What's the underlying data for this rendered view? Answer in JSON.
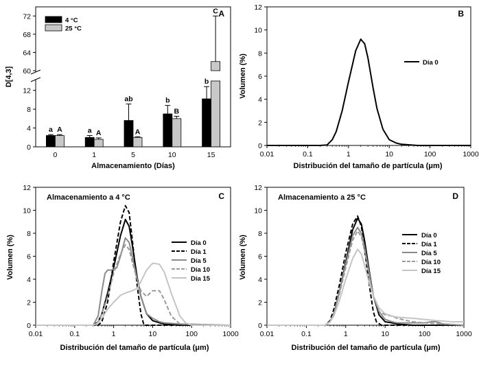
{
  "colors": {
    "axis": "#000000",
    "bar_4c": "#000000",
    "bar_25c": "#c8c8c8"
  },
  "chart_data": [
    {
      "panel": "A",
      "type": "bar",
      "title": "",
      "xlabel": "Almacenamiento (Días)",
      "ylabel": "D[4,3]",
      "categories": [
        "0",
        "1",
        "5",
        "10",
        "15"
      ],
      "ylim_lower": [
        0,
        14
      ],
      "ylim_upper": [
        60,
        74
      ],
      "yticks_lower": [
        "0",
        "4",
        "8",
        "12"
      ],
      "yticks_upper": [
        "60",
        "64",
        "68",
        "72"
      ],
      "axis_break": true,
      "legend_position": "top-left",
      "series": [
        {
          "name": "4 °C",
          "values": [
            2.4,
            2.0,
            5.6,
            7.0,
            10.2
          ],
          "errors": [
            0.2,
            0.4,
            3.5,
            1.8,
            2.6
          ],
          "letters": [
            "a",
            "a",
            "ab",
            "b",
            "b"
          ]
        },
        {
          "name": "25 °C",
          "values": [
            2.4,
            1.6,
            2.0,
            6.0,
            62.0
          ],
          "errors": [
            0.2,
            0.3,
            0.15,
            0.5,
            10.0
          ],
          "letters": [
            "A",
            "A",
            "A",
            "B",
            "C"
          ]
        }
      ]
    },
    {
      "panel": "B",
      "type": "line",
      "xscale": "log",
      "xlabel": "Distribución del tamaño de partícula (μm)",
      "ylabel": "Volumen (%)",
      "xticks": [
        "0.01",
        "0.1",
        "1",
        "10",
        "100",
        "1000"
      ],
      "yticks": [
        "0",
        "2",
        "4",
        "6",
        "8",
        "10",
        "12"
      ],
      "xlim": [
        0.01,
        1000
      ],
      "ylim": [
        0,
        12
      ],
      "legend_position": "top-right",
      "series": [
        {
          "name": "Día 0",
          "style": "solid-black",
          "x": [
            0.01,
            0.2,
            0.3,
            0.4,
            0.5,
            0.7,
            1.0,
            1.5,
            2.0,
            2.5,
            3.0,
            4.0,
            5.0,
            7.0,
            10.0,
            15.0,
            20.0,
            50.0,
            1000.0
          ],
          "y": [
            0,
            0,
            0.05,
            0.5,
            1.2,
            3.0,
            5.5,
            8.2,
            9.2,
            8.8,
            7.6,
            5.0,
            3.2,
            1.4,
            0.5,
            0.2,
            0.1,
            0,
            0
          ]
        }
      ]
    },
    {
      "panel": "C",
      "type": "line",
      "title": "Almacenamiento a 4 °C",
      "xscale": "log",
      "xlabel": "Distribución del tamaño de partícula (μm)",
      "ylabel": "Volumen (%)",
      "xticks": [
        "0.01",
        "0.1",
        "1",
        "10",
        "100",
        "1000"
      ],
      "yticks": [
        "0",
        "2",
        "4",
        "6",
        "8",
        "10",
        "12"
      ],
      "xlim": [
        0.01,
        1000
      ],
      "ylim": [
        0,
        12
      ],
      "legend_position": "right",
      "series": [
        {
          "name": "Día 0",
          "style": "solid-black",
          "x": [
            0.01,
            0.3,
            0.4,
            0.5,
            0.7,
            1.0,
            1.5,
            2.0,
            2.5,
            3.0,
            4.0,
            5.0,
            7.0,
            10.0,
            15.0,
            20.0,
            50.0,
            1000.0
          ],
          "y": [
            0,
            0,
            0.3,
            1.0,
            2.8,
            5.0,
            7.8,
            9.2,
            8.6,
            7.0,
            4.2,
            2.5,
            1.0,
            0.4,
            0.2,
            0.1,
            0,
            0
          ]
        },
        {
          "name": "Día 1",
          "style": "dashed-black",
          "x": [
            0.01,
            0.4,
            0.5,
            0.7,
            1.0,
            1.5,
            2.0,
            2.5,
            3.0,
            4.0,
            5.0,
            6.0,
            1000.0
          ],
          "y": [
            0,
            0,
            0.3,
            2.0,
            5.5,
            9.0,
            10.4,
            9.8,
            7.5,
            3.5,
            1.0,
            0,
            0
          ]
        },
        {
          "name": "Día 5",
          "style": "solid-gray",
          "x": [
            0.01,
            0.3,
            0.4,
            0.5,
            0.6,
            0.7,
            0.9,
            1.2,
            1.5,
            2.0,
            2.5,
            3.0,
            4.0,
            5.0,
            7.0,
            10.0,
            15.0,
            20.0,
            50.0,
            1000.0
          ],
          "y": [
            0,
            0,
            0.8,
            3.0,
            4.5,
            4.8,
            4.8,
            5.0,
            6.0,
            7.6,
            7.2,
            6.0,
            4.0,
            2.5,
            1.0,
            0.6,
            0.3,
            0.2,
            0.1,
            0
          ]
        },
        {
          "name": "Día 10",
          "style": "dashed-gray",
          "x": [
            0.01,
            0.3,
            0.4,
            0.5,
            0.7,
            1.0,
            1.5,
            2.0,
            2.5,
            3.0,
            4.0,
            5.0,
            7.0,
            10.0,
            15.0,
            20.0,
            30.0,
            50.0,
            1000.0
          ],
          "y": [
            0,
            0,
            0.3,
            1.0,
            2.5,
            4.5,
            6.2,
            7.0,
            6.6,
            5.5,
            4.0,
            3.0,
            2.5,
            3.0,
            3.0,
            2.2,
            0.8,
            0.1,
            0
          ]
        },
        {
          "name": "Día 15",
          "style": "solid-lightgray",
          "x": [
            0.01,
            0.3,
            0.4,
            0.5,
            0.7,
            1.0,
            1.5,
            2.0,
            3.0,
            4.0,
            5.0,
            7.0,
            10.0,
            15.0,
            20.0,
            30.0,
            50.0,
            70.0,
            100.0,
            1000.0
          ],
          "y": [
            0,
            0,
            0.2,
            0.6,
            1.4,
            2.0,
            2.6,
            2.8,
            3.0,
            3.2,
            3.8,
            4.8,
            5.4,
            5.3,
            4.6,
            2.8,
            0.8,
            0.2,
            0,
            0
          ]
        }
      ]
    },
    {
      "panel": "D",
      "type": "line",
      "title": "Almacenamiento a 25 °C",
      "xscale": "log",
      "xlabel": "Distribución del tamaño de partícula (μm)",
      "ylabel": "Volumen (%)",
      "xticks": [
        "0.01",
        "0.1",
        "1",
        "10",
        "100",
        "1000"
      ],
      "yticks": [
        "0",
        "2",
        "4",
        "6",
        "8",
        "10",
        "12"
      ],
      "xlim": [
        0.01,
        1000
      ],
      "ylim": [
        0,
        12
      ],
      "legend_position": "right",
      "series": [
        {
          "name": "Día 0",
          "style": "solid-black",
          "x": [
            0.01,
            0.3,
            0.4,
            0.5,
            0.7,
            1.0,
            1.5,
            2.0,
            2.5,
            3.0,
            4.0,
            5.0,
            7.0,
            10.0,
            15.0,
            20.0,
            50.0,
            1000.0
          ],
          "y": [
            0,
            0,
            0.3,
            1.0,
            3.0,
            5.5,
            8.3,
            9.3,
            8.8,
            7.4,
            4.6,
            2.6,
            0.9,
            0.3,
            0.2,
            0.1,
            0,
            0
          ]
        },
        {
          "name": "Día 1",
          "style": "dashed-black",
          "x": [
            0.01,
            0.3,
            0.4,
            0.5,
            0.7,
            1.0,
            1.5,
            2.0,
            2.5,
            3.0,
            4.0,
            5.0,
            6.0,
            8.0,
            1000.0
          ],
          "y": [
            0,
            0,
            0.4,
            1.4,
            3.6,
            6.3,
            8.8,
            9.5,
            8.6,
            6.6,
            3.4,
            1.2,
            0.3,
            0,
            0
          ]
        },
        {
          "name": "Día 5",
          "style": "solid-gray",
          "x": [
            0.01,
            0.3,
            0.4,
            0.5,
            0.7,
            1.0,
            1.5,
            2.0,
            2.5,
            3.0,
            4.0,
            5.0,
            7.0,
            10.0,
            15.0,
            20.0,
            50.0,
            100.0,
            150.0,
            200.0,
            300.0,
            1000.0
          ],
          "y": [
            0,
            0,
            0.3,
            1.0,
            3.0,
            5.3,
            7.8,
            8.5,
            8.0,
            6.8,
            4.4,
            2.6,
            1.2,
            0.5,
            0.3,
            0.2,
            0.2,
            0.2,
            0.3,
            0.3,
            0.1,
            0
          ]
        },
        {
          "name": "Día 10",
          "style": "dashed-gray",
          "x": [
            0.01,
            0.3,
            0.4,
            0.5,
            0.7,
            1.0,
            1.5,
            2.0,
            2.5,
            3.0,
            4.0,
            5.0,
            7.0,
            10.0,
            15.0,
            20.0,
            50.0,
            100.0,
            1000.0
          ],
          "y": [
            0,
            0,
            0.3,
            1.0,
            2.8,
            5.0,
            7.4,
            8.2,
            7.7,
            6.5,
            4.2,
            2.6,
            1.2,
            0.9,
            0.8,
            0.6,
            0.3,
            0.2,
            0
          ]
        },
        {
          "name": "Día 15",
          "style": "solid-lightgray",
          "x": [
            0.01,
            0.3,
            0.4,
            0.5,
            0.7,
            1.0,
            1.5,
            2.0,
            2.5,
            3.0,
            4.0,
            5.0,
            7.0,
            10.0,
            15.0,
            20.0,
            50.0,
            100.0,
            200.0,
            500.0,
            1000.0
          ],
          "y": [
            0,
            0,
            0.3,
            0.8,
            2.2,
            4.0,
            5.8,
            6.6,
            6.2,
            5.2,
            3.6,
            2.6,
            1.5,
            1.0,
            0.8,
            0.7,
            0.6,
            0.5,
            0.4,
            0.3,
            0.3
          ]
        }
      ]
    }
  ]
}
